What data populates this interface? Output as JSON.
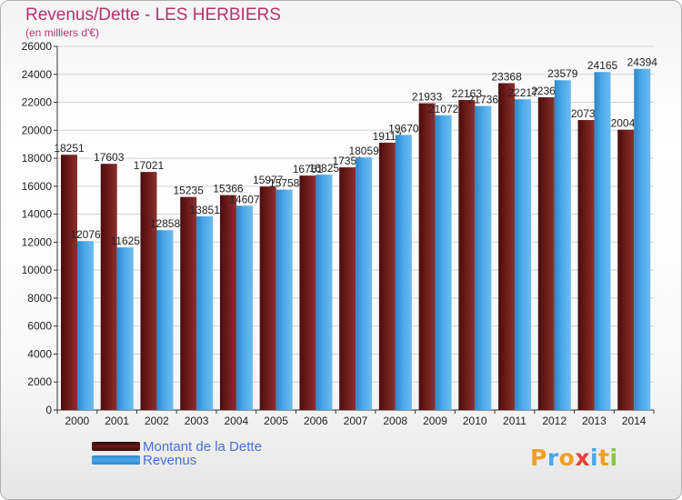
{
  "header": {
    "title": "Revenus/Dette - LES HERBIERS",
    "subtitle": "(en milliers d'€)"
  },
  "colors": {
    "dette": "#6b1a1a",
    "revenus": "#4aa8e8",
    "title": "#b5326e",
    "legend_text": "#4a6fd6"
  },
  "chart_data": {
    "type": "bar",
    "title": "Revenus/Dette - LES HERBIERS",
    "subtitle": "(en milliers d'€)",
    "categories": [
      "2000",
      "2001",
      "2002",
      "2003",
      "2004",
      "2005",
      "2006",
      "2007",
      "2008",
      "2009",
      "2010",
      "2011",
      "2012",
      "2013",
      "2014"
    ],
    "series": [
      {
        "name": "Montant de la Dette",
        "values": [
          18251,
          17603,
          17021,
          15235,
          15366,
          15977,
          16761,
          17351,
          19117,
          21933,
          22163,
          23368,
          22361,
          20732,
          20043
        ],
        "labels": [
          "18251",
          "17603",
          "17021",
          "15235",
          "15366",
          "15977",
          "16761",
          "17351",
          "19117",
          "21933",
          "22163",
          "23368",
          "22361",
          "20732",
          "20043"
        ]
      },
      {
        "name": "Revenus",
        "values": [
          12076,
          11625,
          12858,
          13851,
          14607,
          15758,
          16825,
          18059,
          19670,
          21072,
          21736,
          22217,
          23579,
          24165,
          24394
        ],
        "labels": [
          "12076",
          "11625",
          "12858",
          "13851",
          "14607",
          "15758",
          "16825",
          "18059",
          "19670",
          "21072",
          "21736",
          "22217",
          "23579",
          "24165",
          "24394"
        ]
      }
    ],
    "ylim": [
      0,
      26000
    ],
    "yticks": [
      0,
      2000,
      4000,
      6000,
      8000,
      10000,
      12000,
      14000,
      16000,
      18000,
      20000,
      22000,
      24000,
      26000
    ],
    "grid": true,
    "legend_position": "bottom-left"
  },
  "legend": {
    "items": [
      {
        "label": "Montant de la Dette"
      },
      {
        "label": "Revenus"
      }
    ]
  },
  "logo": {
    "letters": [
      "P",
      "r",
      "o",
      "x",
      "i",
      "t",
      "i"
    ],
    "colors": [
      "#f0a020",
      "#4aa8e8",
      "#f0a020",
      "#e8403a",
      "#4aa8e8",
      "#f0a020",
      "#8ac640"
    ]
  }
}
